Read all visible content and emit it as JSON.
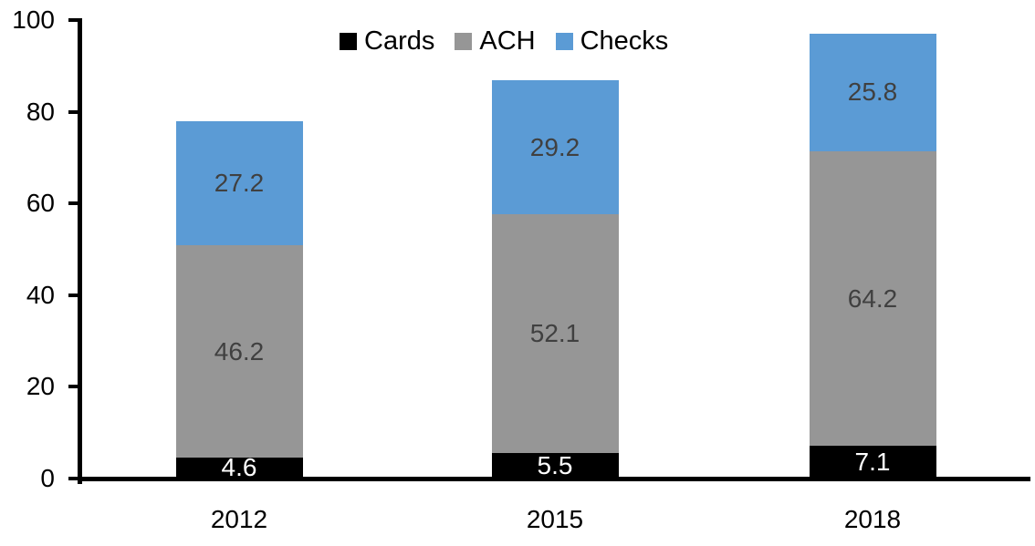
{
  "chart_data": {
    "type": "bar",
    "stacked": true,
    "title": "",
    "categories": [
      "2012",
      "2015",
      "2018"
    ],
    "series": [
      {
        "name": "Cards",
        "color": "#000000",
        "label_color": "#FFFFFF",
        "values": [
          4.6,
          5.5,
          7.1
        ]
      },
      {
        "name": "ACH",
        "color": "#969696",
        "label_color": "#404040",
        "values": [
          46.2,
          52.1,
          64.2
        ]
      },
      {
        "name": "Checks",
        "color": "#5B9BD5",
        "label_color": "#404040",
        "values": [
          27.2,
          29.2,
          25.8
        ]
      }
    ],
    "totals": [
      78.0,
      86.8,
      97.1
    ],
    "ylim": [
      0,
      100
    ],
    "yticks": [
      "0",
      "20",
      "40",
      "60",
      "80",
      "100"
    ],
    "xlabel": "",
    "ylabel": "",
    "grid": false,
    "legend_position": "top-center",
    "axis_color": "#000000",
    "value_label_decimals": 1
  }
}
